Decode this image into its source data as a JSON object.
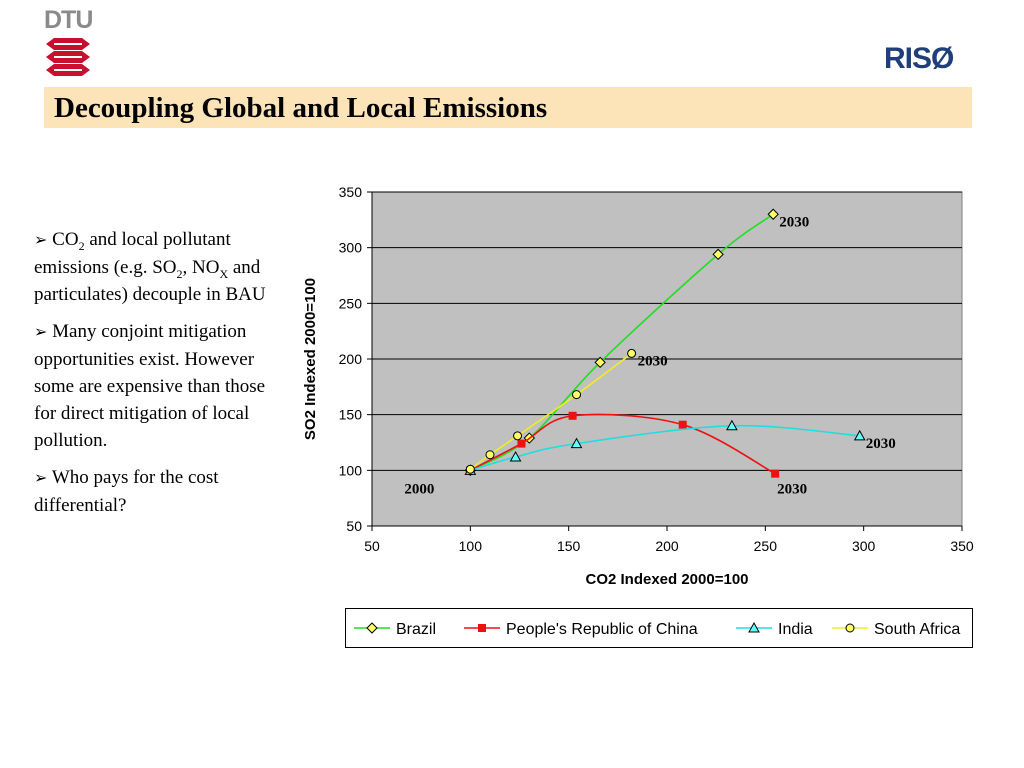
{
  "logos": {
    "dtu": "DTU",
    "riso": "RISØ"
  },
  "header": {
    "title": "Decoupling Global and Local Emissions"
  },
  "bullets": [
    {
      "pre": "CO",
      "sub": "2",
      "post": " and local pollutant emissions (e.g. SO",
      "sub2": "2",
      "mid": ", NO",
      "sub3": "X",
      "end": " and particulates) decouple in BAU"
    },
    {
      "text": "Many conjoint mitigation opportunities exist. However some are expensive than those for direct mitigation of local pollution."
    },
    {
      "text": "Who pays for the cost differential?"
    }
  ],
  "chart_data": {
    "type": "line",
    "xlabel": "CO2 Indexed 2000=100",
    "ylabel": "SO2 Indexed 2000=100",
    "xlim": [
      50,
      350
    ],
    "ylim": [
      50,
      350
    ],
    "xticks": [
      50,
      100,
      150,
      200,
      250,
      300,
      350
    ],
    "yticks": [
      50,
      100,
      150,
      200,
      250,
      300,
      350
    ],
    "grid": "horizontal",
    "legend_position": "bottom",
    "series": [
      {
        "name": "Brazil",
        "color": "#22dd22",
        "marker": "diamond",
        "marker_fill": "#ffff66",
        "points": [
          [
            100,
            100
          ],
          [
            130,
            129
          ],
          [
            166,
            197
          ],
          [
            226,
            294
          ],
          [
            254,
            330
          ]
        ]
      },
      {
        "name": "People's Republic of China",
        "color": "#ee1111",
        "marker": "square",
        "marker_fill": "#ee1111",
        "points": [
          [
            100,
            100
          ],
          [
            126,
            124
          ],
          [
            152,
            149
          ],
          [
            208,
            141
          ],
          [
            255,
            97
          ]
        ]
      },
      {
        "name": "India",
        "color": "#22dddd",
        "marker": "triangle",
        "marker_fill": "#66ffff",
        "points": [
          [
            100,
            100
          ],
          [
            123,
            112
          ],
          [
            154,
            124
          ],
          [
            233,
            140
          ],
          [
            298,
            131
          ]
        ]
      },
      {
        "name": "South Africa",
        "color": "#eeee22",
        "marker": "circle",
        "marker_fill": "#ffff66",
        "points": [
          [
            100,
            101
          ],
          [
            110,
            114
          ],
          [
            124,
            131
          ],
          [
            154,
            168
          ],
          [
            182,
            205
          ]
        ]
      }
    ],
    "annotations": [
      {
        "text": "2030",
        "x": 254,
        "y": 330
      },
      {
        "text": "2030",
        "x": 182,
        "y": 205
      },
      {
        "text": "2030",
        "x": 298,
        "y": 131
      },
      {
        "text": "2030",
        "x": 255,
        "y": 97
      },
      {
        "text": "2000",
        "x": 100,
        "y": 100
      }
    ]
  }
}
